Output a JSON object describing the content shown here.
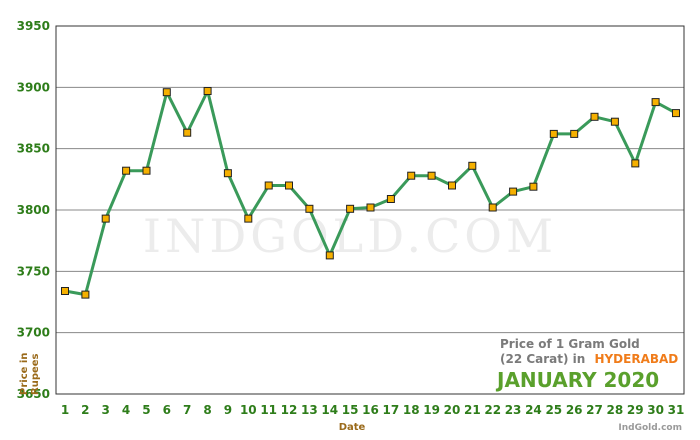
{
  "chart_data": {
    "type": "line",
    "x": [
      1,
      2,
      3,
      4,
      5,
      6,
      7,
      8,
      9,
      10,
      11,
      12,
      13,
      14,
      15,
      16,
      17,
      18,
      19,
      20,
      21,
      22,
      23,
      24,
      25,
      26,
      27,
      28,
      29,
      30,
      31
    ],
    "series": [
      {
        "values": [
          3734,
          3731,
          3793,
          3832,
          3832,
          3896,
          3863,
          3897,
          3830,
          3793,
          3820,
          3820,
          3801,
          3763,
          3801,
          3802,
          3809,
          3828,
          3828,
          3820,
          3836,
          3802,
          3815,
          3819,
          3862,
          3862,
          3876,
          3872,
          3838,
          3888,
          3879
        ]
      }
    ],
    "ylim": [
      3650,
      3950
    ],
    "yticks": [
      3650,
      3700,
      3750,
      3800,
      3850,
      3900,
      3950
    ],
    "xlabel": "Date",
    "ylabel_line1": "Price in",
    "ylabel_line2": "Rupees",
    "grid": true,
    "colors": {
      "line": "#3a9a5a",
      "marker": "#f5b000",
      "grid": "#888888",
      "frame": "#333333"
    }
  },
  "watermark": "INDGOLD.COM",
  "caption": {
    "line1": "Price of 1 Gram Gold",
    "line2_prefix": "(22 Carat) in",
    "city": "HYDERABAD",
    "month": "JANUARY 2020",
    "credit": "IndGold.com"
  }
}
